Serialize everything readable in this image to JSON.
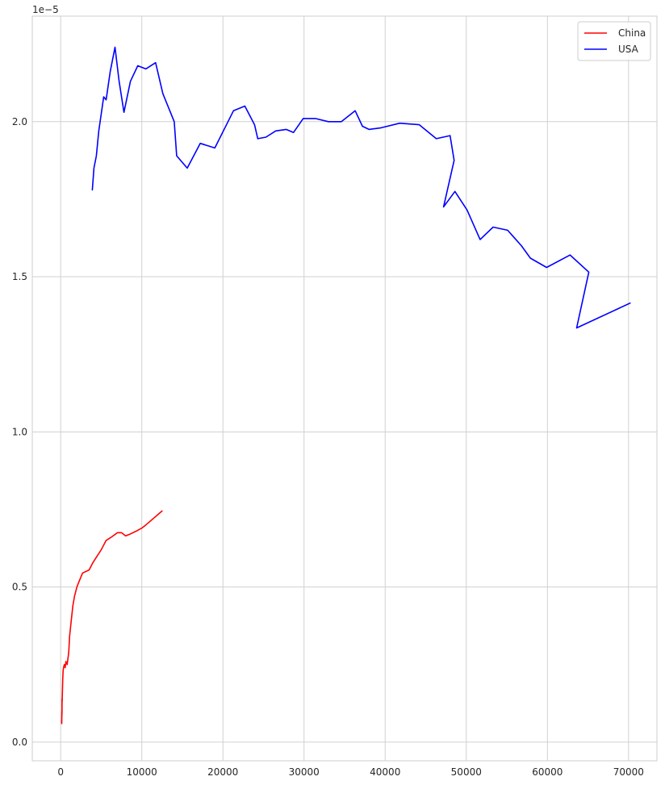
{
  "chart_data": {
    "type": "line",
    "title": "",
    "xlabel": "",
    "ylabel": "",
    "offset_text": "1e−5",
    "xlim": [
      -3500,
      73500
    ],
    "ylim": [
      -0.06,
      2.34
    ],
    "x_ticks": [
      0,
      10000,
      20000,
      30000,
      40000,
      50000,
      60000,
      70000
    ],
    "x_tick_labels": [
      "0",
      "10000",
      "20000",
      "30000",
      "40000",
      "50000",
      "60000",
      "70000"
    ],
    "y_ticks": [
      0.0,
      0.5,
      1.0,
      1.5,
      2.0
    ],
    "y_tick_labels": [
      "0.0",
      "0.5",
      "1.0",
      "1.5",
      "2.0"
    ],
    "grid": true,
    "legend_position": "top-right",
    "series": [
      {
        "name": "China",
        "color": "#ff0000",
        "x": [
          120,
          130,
          140,
          150,
          160,
          170,
          180,
          200,
          250,
          300,
          350,
          450,
          550,
          650,
          800,
          900,
          1000,
          1100,
          1300,
          1500,
          1700,
          2000,
          2300,
          2700,
          3500,
          4000,
          4500,
          5000,
          5600,
          6200,
          7000,
          7500,
          8000,
          8500,
          9300,
          10000,
          10500,
          12500
        ],
        "y": [
          0.07,
          0.06,
          0.08,
          0.1,
          0.09,
          0.14,
          0.13,
          0.15,
          0.2,
          0.23,
          0.24,
          0.25,
          0.24,
          0.26,
          0.25,
          0.27,
          0.29,
          0.34,
          0.39,
          0.44,
          0.47,
          0.5,
          0.52,
          0.545,
          0.555,
          0.58,
          0.6,
          0.62,
          0.65,
          0.66,
          0.675,
          0.675,
          0.665,
          0.67,
          0.68,
          0.69,
          0.7,
          0.745
        ]
      },
      {
        "name": "USA",
        "color": "#0000ff",
        "x": [
          3900,
          4100,
          4400,
          4700,
          5300,
          5600,
          6100,
          6700,
          7200,
          7800,
          8600,
          9500,
          10500,
          11700,
          12600,
          14000,
          14300,
          15600,
          17200,
          19000,
          21300,
          22700,
          23900,
          24300,
          25300,
          26500,
          27800,
          28700,
          29900,
          31400,
          33000,
          34600,
          36300,
          37200,
          38000,
          39500,
          41800,
          44200,
          46300,
          48000,
          48500,
          47200,
          48600,
          50100,
          51700,
          53300,
          55100,
          56800,
          57900,
          59900,
          62800,
          65100,
          63600,
          70200
        ],
        "y": [
          1.78,
          1.85,
          1.89,
          1.97,
          2.08,
          2.07,
          2.16,
          2.24,
          2.13,
          2.03,
          2.13,
          2.18,
          2.17,
          2.19,
          2.09,
          2.0,
          1.89,
          1.85,
          1.93,
          1.915,
          2.035,
          2.05,
          1.99,
          1.945,
          1.95,
          1.97,
          1.975,
          1.965,
          2.01,
          2.01,
          2.0,
          2.0,
          2.035,
          1.985,
          1.975,
          1.98,
          1.995,
          1.99,
          1.945,
          1.955,
          1.875,
          1.725,
          1.775,
          1.715,
          1.62,
          1.66,
          1.65,
          1.6,
          1.56,
          1.53,
          1.57,
          1.515,
          1.335,
          1.415
        ]
      }
    ]
  }
}
